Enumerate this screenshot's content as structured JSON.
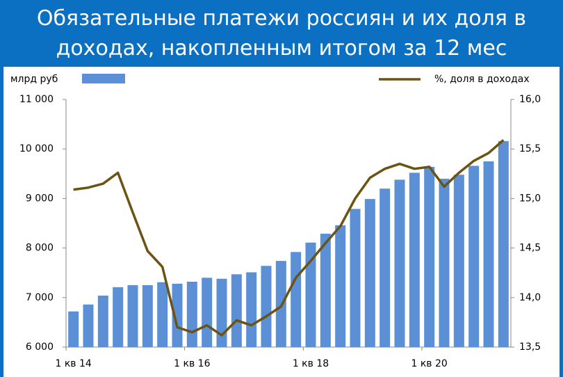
{
  "chart_data": {
    "type": "bar_line",
    "title": "Обязательные платежи россиян и их доля в доходах, накопленным итогом за 12 мес",
    "categories": [
      "1 кв 14",
      null,
      null,
      null,
      null,
      null,
      null,
      null,
      "1 кв 16",
      null,
      null,
      null,
      null,
      null,
      null,
      null,
      "1 кв 18",
      null,
      null,
      null,
      null,
      null,
      null,
      null,
      "1 кв 20",
      null,
      null,
      null,
      null,
      null
    ],
    "series": [
      {
        "name": "млрд руб",
        "type": "bar",
        "color": "#5b8fd6",
        "values": [
          6720,
          6860,
          7040,
          7210,
          7250,
          7250,
          7310,
          7280,
          7320,
          7400,
          7380,
          7470,
          7510,
          7640,
          7740,
          7920,
          8110,
          8290,
          8460,
          8790,
          8990,
          9200,
          9380,
          9520,
          9640,
          9400,
          9480,
          9660,
          9750,
          10160
        ]
      },
      {
        "name": "%, доля в доходах",
        "type": "line",
        "axis": "y2",
        "color": "#6b5313",
        "values": [
          15.09,
          15.11,
          15.15,
          15.26,
          14.86,
          14.47,
          14.31,
          13.7,
          13.65,
          13.72,
          13.62,
          13.77,
          13.72,
          13.81,
          13.91,
          14.2,
          14.37,
          14.55,
          14.72,
          15.0,
          15.21,
          15.3,
          15.35,
          15.3,
          15.32,
          15.12,
          15.26,
          15.38,
          15.46,
          15.59
        ]
      }
    ],
    "ylim": [
      6000,
      11000
    ],
    "yticks": [
      {
        "value": 6000,
        "label": "6 000"
      },
      {
        "value": 7000,
        "label": "7 000"
      },
      {
        "value": 8000,
        "label": "8 000"
      },
      {
        "value": 9000,
        "label": "9 000"
      },
      {
        "value": 10000,
        "label": "10 000"
      },
      {
        "value": 11000,
        "label": "11 000"
      }
    ],
    "y2lim": [
      13.5,
      16.0
    ],
    "y2ticks": [
      {
        "value": 13.5,
        "label": "13,5"
      },
      {
        "value": 14.0,
        "label": "14,0"
      },
      {
        "value": 14.5,
        "label": "14,5"
      },
      {
        "value": 15.0,
        "label": "15,0"
      },
      {
        "value": 15.5,
        "label": "15,5"
      },
      {
        "value": 16.0,
        "label": "16,0"
      }
    ]
  }
}
